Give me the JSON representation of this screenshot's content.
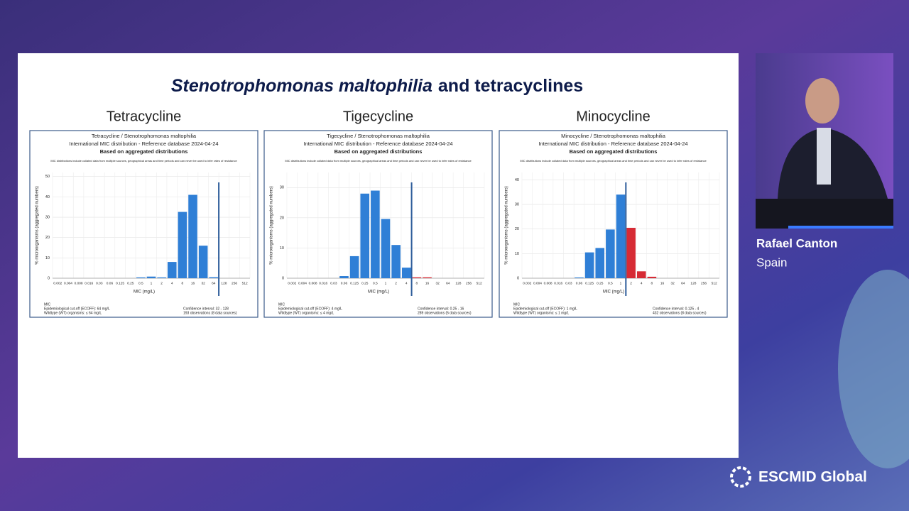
{
  "slide": {
    "title_italic": "Stenotrophomonas maltophilia",
    "title_rest": "and tetracyclines"
  },
  "speaker": {
    "name": "Rafael Canton",
    "country": "Spain"
  },
  "logo": "ESCMID Global",
  "chart_data": [
    {
      "type": "bar",
      "heading": "Tetracycline",
      "title_lines": [
        "Tetracycline / Stenotrophomonas maltophilia",
        "International MIC distribution - Reference database 2024-04-24",
        "Based on aggregated distributions"
      ],
      "disclaimer": "MIC distributions include collated data from multiple sources, geographical areas and time periods and can never be used to infer rates of resistance",
      "xlabel": "MIC (mg/L)",
      "ylabel": "% microorganisms (aggregated numbers)",
      "categories": [
        "0.002",
        "0.004",
        "0.008",
        "0.016",
        "0.03",
        "0.06",
        "0.125",
        "0.25",
        "0.5",
        "1",
        "2",
        "4",
        "8",
        "16",
        "32",
        "64",
        "128",
        "256",
        "512"
      ],
      "values": [
        0,
        0,
        0,
        0,
        0,
        0,
        0,
        0,
        0.4,
        0.8,
        0.4,
        8,
        32.6,
        41,
        16,
        0.5,
        0,
        0,
        0
      ],
      "ecoff": 64,
      "color": "#2f7fd6",
      "color_above_ecoff": "#d62b35",
      "ylim": [
        0,
        52
      ],
      "yticks": [
        0,
        10,
        20,
        30,
        40,
        50
      ],
      "grid": true,
      "footer_left": [
        "MIC",
        "Epidemiological cut-off (ECOFF): 64 mg/L",
        "Wildtype (WT) organisms: ≤ 64 mg/L"
      ],
      "footer_right": [
        "Confidence interval: 32 - 128",
        "193 observations (8 data sources)"
      ]
    },
    {
      "type": "bar",
      "heading": "Tigecycline",
      "title_lines": [
        "Tigecycline / Stenotrophomonas maltophilia",
        "International MIC distribution - Reference database 2024-04-24",
        "Based on aggregated distributions"
      ],
      "disclaimer": "MIC distributions include collated data from multiple sources, geographical areas and time periods and can never be used to infer rates of resistance",
      "xlabel": "MIC (mg/L)",
      "ylabel": "% microorganisms (aggregated numbers)",
      "categories": [
        "0.002",
        "0.004",
        "0.008",
        "0.016",
        "0.03",
        "0.06",
        "0.125",
        "0.25",
        "0.5",
        "1",
        "2",
        "4",
        "8",
        "16",
        "32",
        "64",
        "128",
        "256",
        "512"
      ],
      "values": [
        0,
        0,
        0,
        0,
        0,
        0.7,
        7.3,
        28,
        29,
        19.6,
        11,
        3.5,
        0.3,
        0.3,
        0,
        0,
        0,
        0,
        0
      ],
      "ecoff": 4,
      "color": "#2f7fd6",
      "color_above_ecoff": "#d62b35",
      "ylim": [
        0,
        35
      ],
      "yticks": [
        0,
        10,
        20,
        30
      ],
      "grid": true,
      "footer_left": [
        "MIC",
        "Epidemiological cut-off (ECOFF): 4 mg/L",
        "Wildtype (WT) organisms: ≤ 4 mg/L"
      ],
      "footer_right": [
        "Confidence interval: 0.25 - 16",
        "289 observations (5 data sources)"
      ]
    },
    {
      "type": "bar",
      "heading": "Minocycline",
      "title_lines": [
        "Minocycline / Stenotrophomonas maltophilia",
        "International MIC distribution - Reference database 2024-04-24",
        "Based on aggregated distributions"
      ],
      "disclaimer": "MIC distributions include collated data from multiple sources, geographical areas and time periods and can never be used to infer rates of resistance",
      "xlabel": "MIC (mg/L)",
      "ylabel": "% microorganisms (aggregated numbers)",
      "categories": [
        "0.002",
        "0.004",
        "0.008",
        "0.016",
        "0.03",
        "0.06",
        "0.125",
        "0.25",
        "0.5",
        "1",
        "2",
        "4",
        "8",
        "16",
        "32",
        "64",
        "128",
        "256",
        "512"
      ],
      "values": [
        0,
        0,
        0,
        0,
        0,
        0.3,
        10.5,
        12.3,
        19.8,
        34,
        20.5,
        2.8,
        0.6,
        0,
        0,
        0,
        0,
        0,
        0
      ],
      "ecoff": 1,
      "color": "#2f7fd6",
      "color_above_ecoff": "#d62b35",
      "ylim": [
        0,
        43
      ],
      "yticks": [
        0,
        10,
        20,
        30,
        40
      ],
      "grid": true,
      "footer_left": [
        "MIC",
        "Epidemiological cut-off (ECOFF): 1 mg/L",
        "Wildtype (WT) organisms: ≤ 1 mg/L"
      ],
      "footer_right": [
        "Confidence interval: 0.125 - 4",
        "432 observations (8 data sources)"
      ]
    }
  ]
}
